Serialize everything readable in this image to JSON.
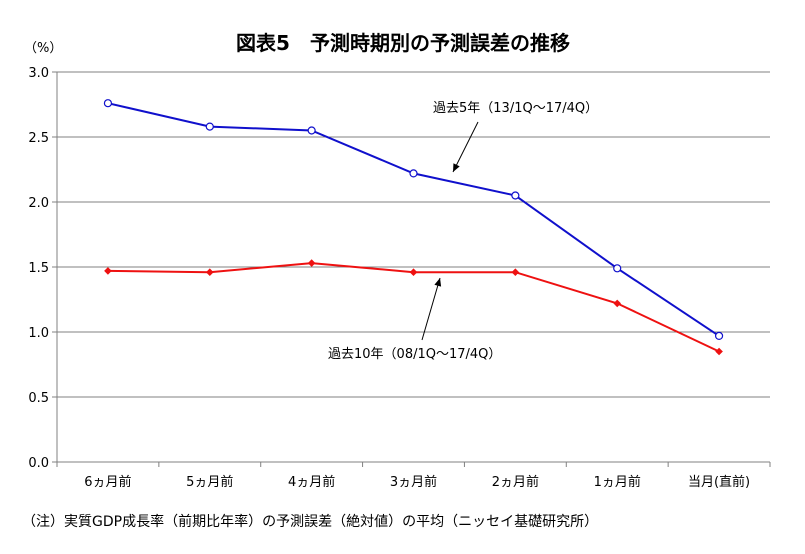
{
  "chart_data": {
    "type": "line",
    "title": "図表5　予測時期別の予測誤差の推移",
    "y_unit": "（%）",
    "categories": [
      "6ヵ月前",
      "5ヵ月前",
      "4ヵ月前",
      "3ヵ月前",
      "2ヵ月前",
      "1ヵ月前",
      "当月(直前)"
    ],
    "ylim": [
      0.0,
      3.0
    ],
    "yticks": [
      "0.0",
      "0.5",
      "1.0",
      "1.5",
      "2.0",
      "2.5",
      "3.0"
    ],
    "grid": true,
    "series": [
      {
        "name": "過去5年（13/1Q～17/4Q）",
        "color": "#1010cc",
        "marker": "open-circle",
        "values": [
          2.76,
          2.58,
          2.55,
          2.22,
          2.05,
          1.49,
          0.97
        ]
      },
      {
        "name": "過去10年（08/1Q～17/4Q）",
        "color": "#ee1111",
        "marker": "diamond",
        "values": [
          1.47,
          1.46,
          1.53,
          1.46,
          1.46,
          1.22,
          0.85
        ]
      }
    ],
    "note": "（注）実質GDP成長率（前期比年率）の予測誤差（絶対値）の平均（ニッセイ基礎研究所）"
  }
}
